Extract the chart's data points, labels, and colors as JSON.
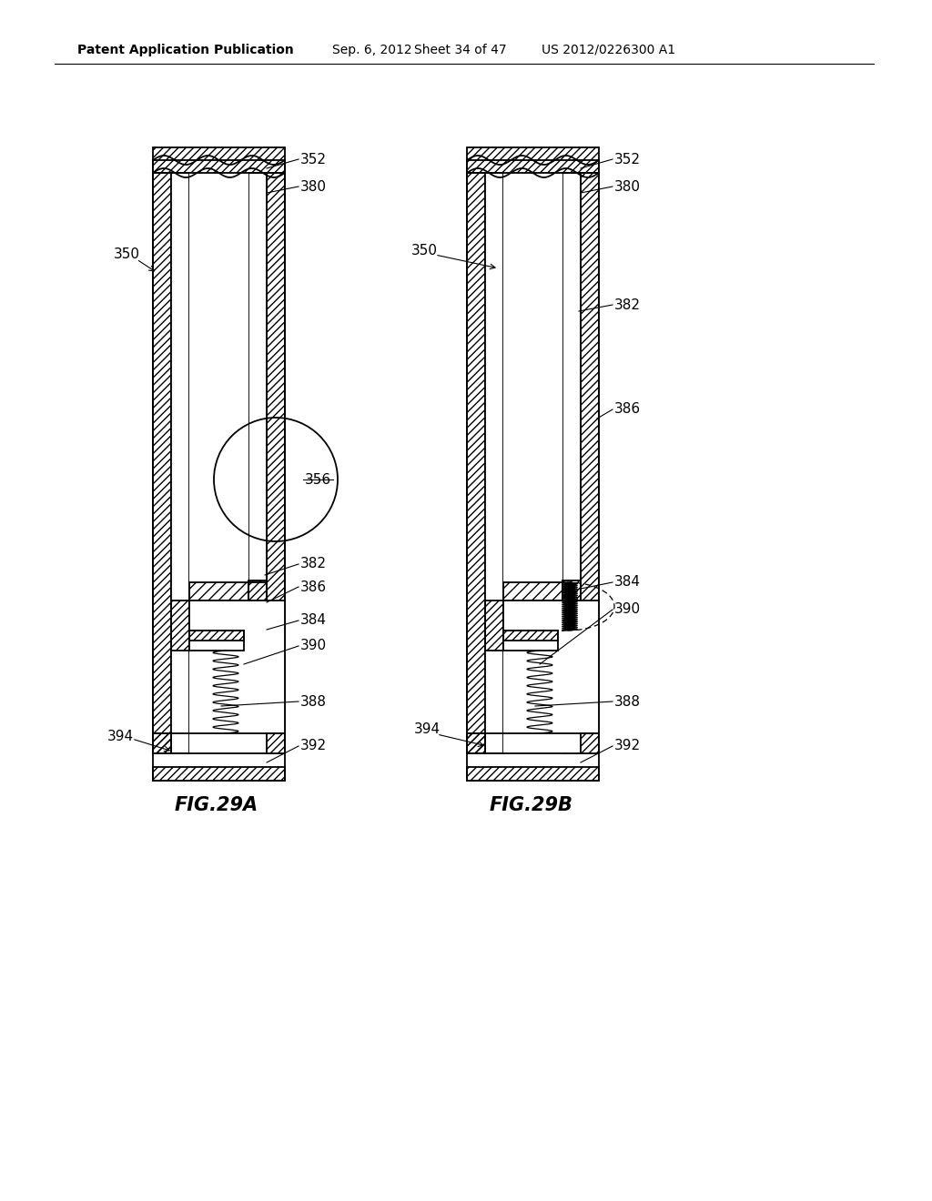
{
  "bg_color": "#ffffff",
  "header_text": "Patent Application Publication",
  "header_date": "Sep. 6, 2012",
  "header_sheet": "Sheet 34 of 47",
  "header_patent": "US 2012/0226300 A1",
  "fig_a_label": "FIG.29A",
  "fig_b_label": "FIG.29B"
}
